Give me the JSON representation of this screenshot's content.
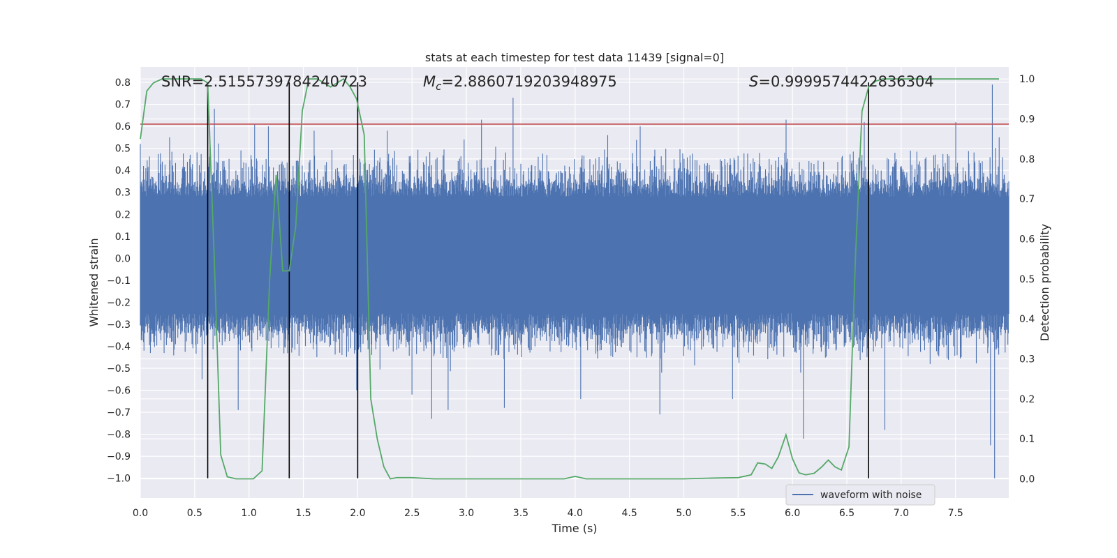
{
  "chart_data": {
    "type": "line",
    "title": "stats at each timestep for test data 11439 [signal=0]",
    "xlabel": "Time (s)",
    "ylabel": "Whitened strain",
    "y2label": "Detection probability",
    "xlim": [
      0.0,
      7.99
    ],
    "ylim": [
      -1.09,
      0.87
    ],
    "y2lim": [
      -0.048,
      1.03
    ],
    "x_ticks": [
      "0.0",
      "0.5",
      "1.0",
      "1.5",
      "2.0",
      "2.5",
      "3.0",
      "3.5",
      "4.0",
      "4.5",
      "5.0",
      "5.5",
      "6.0",
      "6.5",
      "7.0",
      "7.5"
    ],
    "y_ticks": [
      "0.8",
      "0.7",
      "0.6",
      "0.5",
      "0.4",
      "0.3",
      "0.2",
      "0.1",
      "0.0",
      "−0.1",
      "−0.2",
      "−0.3",
      "−0.4",
      "−0.5",
      "−0.6",
      "−0.7",
      "−0.8",
      "−0.9",
      "−1.0"
    ],
    "y2_ticks": [
      "1.0",
      "0.9",
      "0.8",
      "0.7",
      "0.6",
      "0.5",
      "0.4",
      "0.3",
      "0.2",
      "0.1",
      "0.0"
    ],
    "annotations": {
      "snr": "SNR=2.5155739784240723",
      "mc_symbol": "M",
      "mc_sub": "c",
      "mc_value": "=2.8860719203948975",
      "s_symbol": "S",
      "s_value": "=0.9999574422836304"
    },
    "legend": {
      "label": "waveform with noise",
      "position": "bottom-right"
    },
    "grid": true,
    "threshold": {
      "y": 0.61,
      "color": "#c44e52"
    },
    "vertical_lines": [
      0.62,
      1.37,
      2.0,
      6.7
    ],
    "series": [
      {
        "name": "waveform with noise",
        "axis": "left",
        "color": "#4c72b0",
        "typical_range": [
          -0.3,
          0.35
        ],
        "peaks": [
          {
            "x": 0.0,
            "y": 0.52
          },
          {
            "x": 0.27,
            "y": 0.55
          },
          {
            "x": 0.64,
            "y": 0.58
          },
          {
            "x": 0.68,
            "y": 0.68
          },
          {
            "x": 1.05,
            "y": 0.61
          },
          {
            "x": 1.18,
            "y": 0.6
          },
          {
            "x": 1.6,
            "y": 0.58
          },
          {
            "x": 2.27,
            "y": 0.58
          },
          {
            "x": 3.14,
            "y": 0.63
          },
          {
            "x": 3.43,
            "y": 0.73
          },
          {
            "x": 4.3,
            "y": 0.56
          },
          {
            "x": 4.6,
            "y": 0.6
          },
          {
            "x": 5.94,
            "y": 0.63
          },
          {
            "x": 6.66,
            "y": 0.62
          },
          {
            "x": 7.5,
            "y": 0.62
          },
          {
            "x": 7.84,
            "y": 0.79
          },
          {
            "x": 7.9,
            "y": 0.55
          }
        ],
        "troughs": [
          {
            "x": 0.57,
            "y": -0.55
          },
          {
            "x": 0.9,
            "y": -0.69
          },
          {
            "x": 1.99,
            "y": -0.6
          },
          {
            "x": 2.5,
            "y": -0.62
          },
          {
            "x": 2.68,
            "y": -0.73
          },
          {
            "x": 2.83,
            "y": -0.69
          },
          {
            "x": 3.35,
            "y": -0.68
          },
          {
            "x": 4.05,
            "y": -0.64
          },
          {
            "x": 4.78,
            "y": -0.71
          },
          {
            "x": 5.45,
            "y": -0.64
          },
          {
            "x": 6.1,
            "y": -0.82
          },
          {
            "x": 6.85,
            "y": -0.78
          },
          {
            "x": 7.82,
            "y": -0.85
          },
          {
            "x": 7.86,
            "y": -1.0
          }
        ]
      },
      {
        "name": "detection probability",
        "axis": "right",
        "color": "#55a868",
        "x": [
          0.0,
          0.06,
          0.12,
          0.2,
          0.3,
          0.4,
          0.5,
          0.56,
          0.62,
          0.68,
          0.74,
          0.8,
          0.88,
          0.96,
          1.04,
          1.12,
          1.19,
          1.25,
          1.31,
          1.37,
          1.43,
          1.49,
          1.55,
          1.63,
          1.69,
          1.75,
          1.81,
          1.87,
          1.93,
          1.99,
          2.06,
          2.12,
          2.18,
          2.24,
          2.3,
          2.36,
          2.5,
          2.7,
          3.0,
          3.3,
          3.6,
          3.8,
          3.9,
          4.0,
          4.1,
          4.2,
          4.4,
          4.7,
          5.0,
          5.3,
          5.5,
          5.62,
          5.68,
          5.75,
          5.81,
          5.87,
          5.94,
          6.0,
          6.06,
          6.12,
          6.2,
          6.27,
          6.33,
          6.39,
          6.45,
          6.52,
          6.58,
          6.64,
          6.7,
          6.77,
          6.83,
          6.89,
          6.95,
          7.05,
          7.2,
          7.5,
          7.8,
          7.9
        ],
        "y": [
          0.85,
          0.97,
          0.99,
          1.0,
          1.0,
          1.0,
          1.0,
          1.0,
          0.99,
          0.55,
          0.06,
          0.005,
          0.0,
          0.0,
          0.0,
          0.02,
          0.5,
          0.76,
          0.52,
          0.52,
          0.63,
          0.92,
          1.0,
          1.0,
          0.99,
          0.98,
          0.99,
          1.0,
          0.98,
          0.95,
          0.86,
          0.2,
          0.1,
          0.03,
          0.0,
          0.003,
          0.003,
          0.0,
          0.0,
          0.0,
          0.0,
          0.0,
          0.0,
          0.006,
          0.0,
          0.0,
          0.0,
          0.0,
          0.0,
          0.002,
          0.003,
          0.01,
          0.04,
          0.037,
          0.026,
          0.055,
          0.11,
          0.05,
          0.015,
          0.01,
          0.014,
          0.03,
          0.047,
          0.03,
          0.022,
          0.08,
          0.56,
          0.92,
          0.98,
          0.995,
          1.0,
          1.0,
          1.0,
          1.0,
          1.0,
          1.0,
          1.0,
          1.0
        ]
      }
    ]
  }
}
